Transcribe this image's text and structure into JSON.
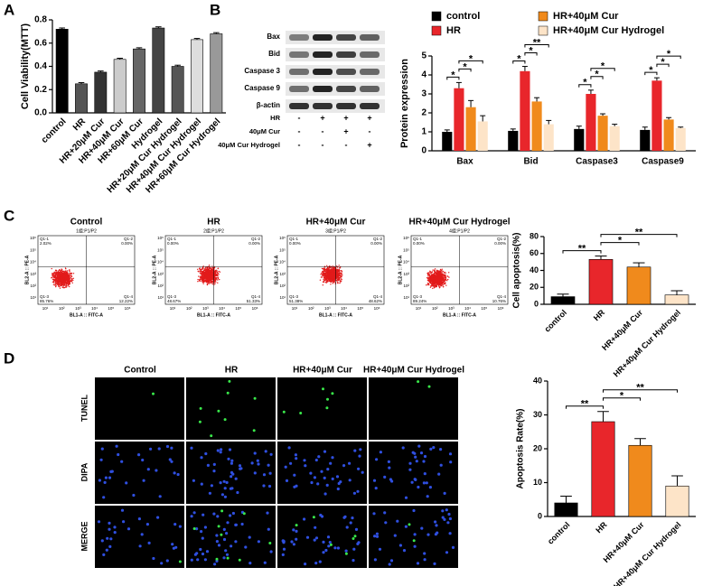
{
  "panels": [
    "A",
    "B",
    "C",
    "D"
  ],
  "chart_data": [
    {
      "type": "bar",
      "y_label": "Cell Viability(MTT)",
      "categories": [
        "control",
        "HR",
        "HR+20μM Cur",
        "HR+40μM Cur",
        "HR+60μM Cur",
        "Hydrogel",
        "HR+20μM Cur Hydrogel",
        "HR+40μM Cur Hydrogel",
        "HR+60μM Cur Hydrogel"
      ],
      "values": [
        0.72,
        0.25,
        0.35,
        0.46,
        0.55,
        0.73,
        0.4,
        0.63,
        0.68
      ],
      "errors": [
        0.01,
        0.01,
        0.01,
        0.01,
        0.01,
        0.01,
        0.01,
        0.01,
        0.01
      ],
      "colors": [
        "#000000",
        "#555555",
        "#333333",
        "#cccccc",
        "#666666",
        "#444444",
        "#555555",
        "#dddddd",
        "#999999"
      ],
      "ylim": [
        0,
        0.8
      ],
      "yticks": [
        {
          "value": 0,
          "label": "0.0"
        },
        {
          "value": 0.2,
          "label": "0.2"
        },
        {
          "value": 0.4,
          "label": "0.4"
        },
        {
          "value": 0.6,
          "label": "0.6"
        },
        {
          "value": 0.8,
          "label": "0.8"
        }
      ]
    },
    {
      "type": "bar",
      "y_label": "Protein expression",
      "categories": [
        "Bax",
        "Bid",
        "Caspase3",
        "Caspase9"
      ],
      "series": [
        {
          "name": "control",
          "color": "#000000",
          "values": [
            1.0,
            1.05,
            1.15,
            1.1
          ],
          "errors": [
            0.1,
            0.1,
            0.15,
            0.15
          ]
        },
        {
          "name": "HR",
          "color": "#e8262b",
          "values": [
            3.3,
            4.2,
            3.0,
            3.7
          ],
          "errors": [
            0.3,
            0.25,
            0.2,
            0.15
          ]
        },
        {
          "name": "HR+40μM Cur",
          "color": "#f08a1c",
          "values": [
            2.3,
            2.6,
            1.85,
            1.65
          ],
          "errors": [
            0.35,
            0.2,
            0.1,
            0.1
          ]
        },
        {
          "name": "HR+40μM Cur Hydrogel",
          "color": "#fde4c8",
          "values": [
            1.55,
            1.4,
            1.3,
            1.2
          ],
          "errors": [
            0.3,
            0.2,
            0.1,
            0.05
          ]
        }
      ],
      "ylim": [
        0,
        5
      ],
      "yticks": [
        0,
        1,
        2,
        3,
        4,
        5
      ],
      "annotations": [
        {
          "text": "*",
          "category": 0,
          "from": 0,
          "to": 1
        },
        {
          "text": "*",
          "category": 0,
          "from": 1,
          "to": 2
        },
        {
          "text": "*",
          "category": 0,
          "from": 1,
          "to": 3
        },
        {
          "text": "*",
          "category": 1,
          "from": 0,
          "to": 1
        },
        {
          "text": "*",
          "category": 1,
          "from": 1,
          "to": 2
        },
        {
          "text": "**",
          "category": 1,
          "from": 1,
          "to": 3
        },
        {
          "text": "*",
          "category": 2,
          "from": 0,
          "to": 1
        },
        {
          "text": "*",
          "category": 2,
          "from": 1,
          "to": 2
        },
        {
          "text": "*",
          "category": 2,
          "from": 1,
          "to": 3
        },
        {
          "text": "*",
          "category": 3,
          "from": 0,
          "to": 1
        },
        {
          "text": "*",
          "category": 3,
          "from": 1,
          "to": 2
        },
        {
          "text": "*",
          "category": 3,
          "from": 1,
          "to": 3
        }
      ]
    },
    {
      "type": "bar",
      "y_label": "Cell apoptosis(%)",
      "categories": [
        "control",
        "HR",
        "HR+40μM Cur",
        "HR+40μM Cur Hydrogel"
      ],
      "values": [
        9,
        53,
        44,
        11
      ],
      "errors": [
        3,
        4,
        5,
        5
      ],
      "colors": [
        "#000000",
        "#e8262b",
        "#f08a1c",
        "#fde4c8"
      ],
      "ylim": [
        0,
        80
      ],
      "yticks": [
        0,
        20,
        40,
        60,
        80
      ],
      "annotations": [
        {
          "text": "**",
          "from": 0,
          "to": 1
        },
        {
          "text": "*",
          "from": 1,
          "to": 2
        },
        {
          "text": "**",
          "from": 1,
          "to": 3
        }
      ]
    },
    {
      "type": "bar",
      "y_label": "Apoptosis Rate(%)",
      "categories": [
        "control",
        "HR",
        "HR+40μM Cur",
        "HR+40μM Cur Hydrogel"
      ],
      "values": [
        4,
        28,
        21,
        9
      ],
      "errors": [
        2,
        3,
        2,
        3
      ],
      "colors": [
        "#000000",
        "#e8262b",
        "#f08a1c",
        "#fde4c8"
      ],
      "ylim": [
        0,
        40
      ],
      "yticks": [
        0,
        10,
        20,
        30,
        40
      ],
      "annotations": [
        {
          "text": "**",
          "from": 0,
          "to": 1
        },
        {
          "text": "*",
          "from": 1,
          "to": 2
        },
        {
          "text": "**",
          "from": 1,
          "to": 3
        }
      ]
    }
  ],
  "blot": {
    "proteins": [
      "Bax",
      "Bid",
      "Caspase 3",
      "Caspase 9",
      "β-actin"
    ],
    "conditions": [
      {
        "label": "HR",
        "marks": [
          "-",
          "+",
          "+",
          "+"
        ]
      },
      {
        "label": "40μM Cur",
        "marks": [
          "-",
          "-",
          "+",
          "-"
        ]
      },
      {
        "label": "40μM Cur Hydrogel",
        "marks": [
          "-",
          "-",
          "-",
          "+"
        ]
      }
    ]
  },
  "flow": {
    "y_label": "BL2-A :: PE-A",
    "x_label": "BL1-A :: FITC-A",
    "ticks": [
      "10¹",
      "10²",
      "10³",
      "10⁴",
      "10⁵",
      "10⁶"
    ],
    "quadrant_names": [
      "Q1-1",
      "Q1-2",
      "Q1-3",
      "Q1-4"
    ],
    "samples": [
      {
        "title": "Control",
        "subtitle": "1组:P1/P2",
        "quadrants": [
          "2.02%",
          "0.00%",
          "85.76%",
          "12.22%"
        ]
      },
      {
        "title": "HR",
        "subtitle": "2组:P1/P2",
        "quadrants": [
          "0.00%",
          "0.00%",
          "48.67%",
          "51.33%"
        ]
      },
      {
        "title": "HR+40μM Cur",
        "subtitle": "3组:P1/P2",
        "quadrants": [
          "0.00%",
          "0.00%",
          "51.38%",
          "48.62%"
        ]
      },
      {
        "title": "HR+40μM Cur Hydrogel",
        "subtitle": "4组:P1/P2",
        "quadrants": [
          "0.00%",
          "0.00%",
          "89.24%",
          "10.76%"
        ]
      }
    ]
  },
  "microscopy": {
    "columns": [
      "Control",
      "HR",
      "HR+40μM Cur",
      "HR+40μM Cur Hydrogel"
    ],
    "rows": [
      "TUNEL",
      "DIPA",
      "MERGE"
    ]
  }
}
